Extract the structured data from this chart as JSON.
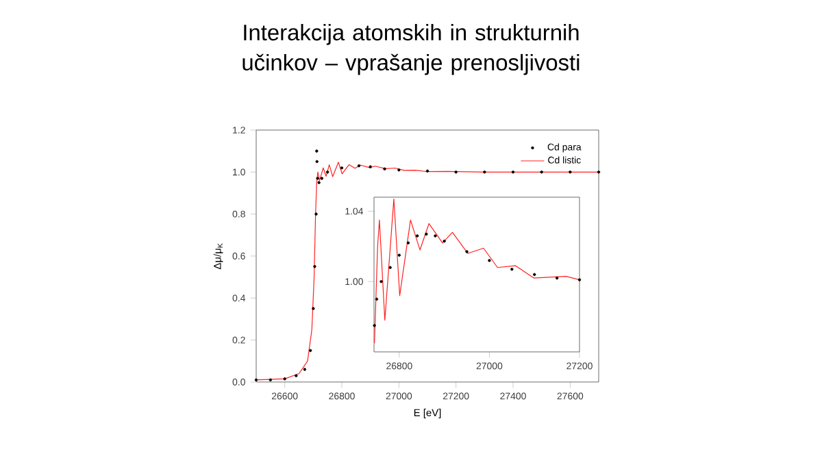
{
  "chart_data": [
    {
      "type": "line",
      "title": "Interakcija atomskih in strukturnih učinkov – vprašanje prenosljivosti",
      "xlabel": "E [eV]",
      "ylabel": "Δμ/μ$_{K}$",
      "xlim": [
        26500,
        27700
      ],
      "ylim": [
        0,
        1.2
      ],
      "xticks": [
        26600,
        26800,
        27000,
        27200,
        27400,
        27600
      ],
      "yticks": [
        {
          "value": 0,
          "label": "0.0"
        },
        {
          "value": 0.2,
          "label": "0.2"
        },
        {
          "value": 0.4,
          "label": "0.4"
        },
        {
          "value": 0.6,
          "label": "0.6"
        },
        {
          "value": 0.8,
          "label": "0.8"
        },
        {
          "value": 1.0,
          "label": "1.0"
        },
        {
          "value": 1.2,
          "label": "1.2"
        }
      ],
      "legend": "top right",
      "series": [
        {
          "name": "Cd para",
          "type": "scatter",
          "marker": "circle",
          "color": "#000000",
          "x": [
            26500,
            26550,
            26600,
            26640,
            26670,
            26690,
            26700,
            26705,
            26710,
            26712,
            26713,
            26715,
            26720,
            26730,
            26750,
            26800,
            26860,
            26900,
            26950,
            27000,
            27100,
            27200,
            27300,
            27400,
            27500,
            27600,
            27700
          ],
          "values": [
            0.01,
            0.01,
            0.015,
            0.03,
            0.06,
            0.15,
            0.35,
            0.55,
            0.8,
            1.1,
            1.05,
            0.97,
            0.95,
            0.97,
            1.0,
            1.02,
            1.03,
            1.025,
            1.015,
            1.01,
            1.005,
            1.0,
            1.0,
            1.0,
            1.0,
            1.0,
            1.0
          ]
        },
        {
          "name": "Cd listic",
          "line_style": "solid",
          "color": "#ff2020",
          "x": [
            26500,
            26600,
            26650,
            26680,
            26695,
            26703,
            26708,
            26712,
            26716,
            26722,
            26735,
            26745,
            26756,
            26768,
            26788,
            26801,
            26825,
            26846,
            26866,
            26896,
            26918,
            26952,
            26987,
            27018,
            27058,
            27099,
            27170,
            27300,
            27500,
            27700
          ],
          "values": [
            0.01,
            0.015,
            0.04,
            0.1,
            0.25,
            0.5,
            0.8,
            0.95,
            1.0,
            0.96,
            1.02,
            0.98,
            1.035,
            0.978,
            1.047,
            0.992,
            1.035,
            1.018,
            1.033,
            1.022,
            1.028,
            1.016,
            1.019,
            1.008,
            1.009,
            1.002,
            1.003,
            1.0,
            1.0,
            1.0
          ]
        }
      ]
    },
    {
      "type": "line",
      "xlim": [
        26744,
        27200
      ],
      "ylim": [
        0.96,
        1.048
      ],
      "xticks": [
        26800,
        27000,
        27200
      ],
      "yticks": [
        {
          "value": 1.0,
          "label": "1.00"
        },
        {
          "value": 1.04,
          "label": "1.04"
        }
      ],
      "series": [
        {
          "type": "scatter",
          "marker": "circle",
          "color": "#000000",
          "x": [
            26745,
            26750,
            26760,
            26780,
            26800,
            26820,
            26840,
            26860,
            26880,
            26900,
            26950,
            27000,
            27050,
            27100,
            27150,
            27200
          ],
          "values": [
            0.975,
            0.99,
            1.0,
            1.008,
            1.015,
            1.022,
            1.026,
            1.027,
            1.026,
            1.023,
            1.017,
            1.012,
            1.007,
            1.004,
            1.002,
            1.001
          ]
        },
        {
          "line_style": "solid",
          "color": "#ff2020",
          "x": [
            26745,
            26752,
            26756,
            26768,
            26788,
            26801,
            26825,
            26846,
            26866,
            26896,
            26918,
            26952,
            26987,
            27018,
            27058,
            27099,
            27170,
            27200
          ],
          "values": [
            0.965,
            1.02,
            1.035,
            0.978,
            1.047,
            0.992,
            1.035,
            1.018,
            1.033,
            1.022,
            1.028,
            1.016,
            1.019,
            1.008,
            1.009,
            1.002,
            1.003,
            1.001
          ]
        }
      ]
    }
  ]
}
